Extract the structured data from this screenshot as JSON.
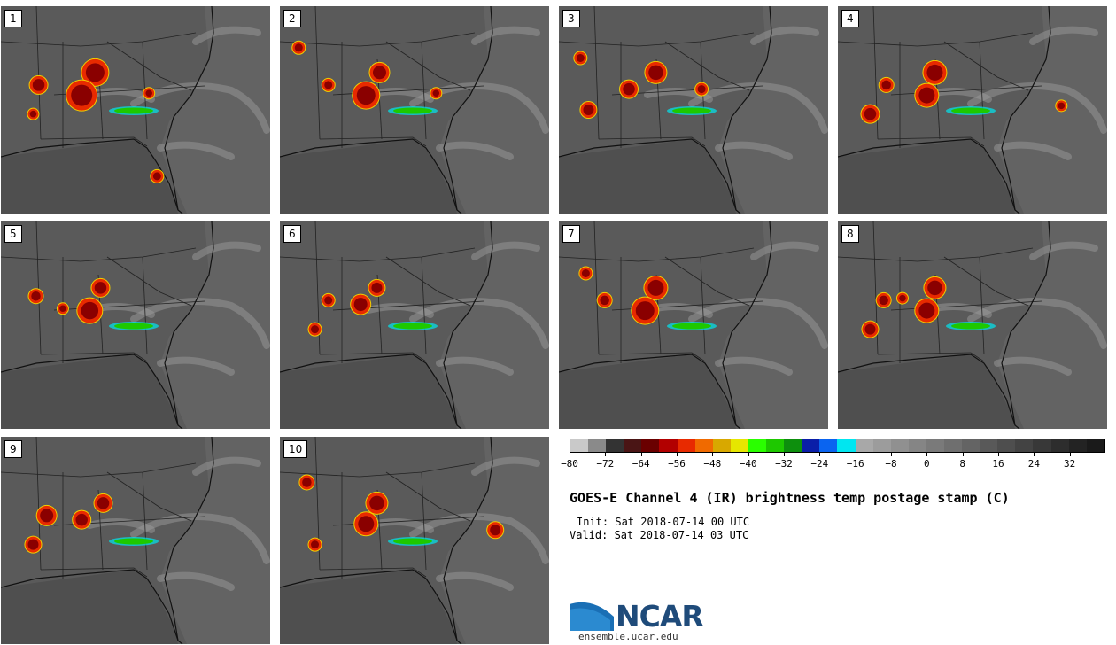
{
  "panels": [
    {
      "label": "1"
    },
    {
      "label": "2"
    },
    {
      "label": "3"
    },
    {
      "label": "4"
    },
    {
      "label": "5"
    },
    {
      "label": "6"
    },
    {
      "label": "7"
    },
    {
      "label": "8"
    },
    {
      "label": "9"
    },
    {
      "label": "10"
    }
  ],
  "colorbar": {
    "colors": [
      "#c9c9c9",
      "#8a8a8a",
      "#333333",
      "#4a1515",
      "#6a0000",
      "#b20000",
      "#e82a00",
      "#f06a00",
      "#d8a800",
      "#e6e600",
      "#2aff00",
      "#1ec800",
      "#0d8f0d",
      "#0a1ea8",
      "#0a64f0",
      "#00e6f0",
      "#a8a8a8",
      "#9c9c9c",
      "#909090",
      "#858585",
      "#7a7a7a",
      "#6f6f6f",
      "#646464",
      "#595959",
      "#4e4e4e",
      "#434343",
      "#383838",
      "#2d2d2d",
      "#232323",
      "#1a1a1a"
    ],
    "ticks": [
      "−80",
      "−72",
      "−64",
      "−56",
      "−48",
      "−40",
      "−32",
      "−24",
      "−16",
      "−8",
      "0",
      "8",
      "16",
      "24",
      "32"
    ]
  },
  "title": "GOES-E Channel 4 (IR) brightness temp postage stamp (C)",
  "init": "Init: Sat 2018-07-14 00 UTC",
  "valid": "Valid: Sat 2018-07-14 03 UTC",
  "logo": {
    "text": "NCAR",
    "url": "ensemble.ucar.edu"
  }
}
